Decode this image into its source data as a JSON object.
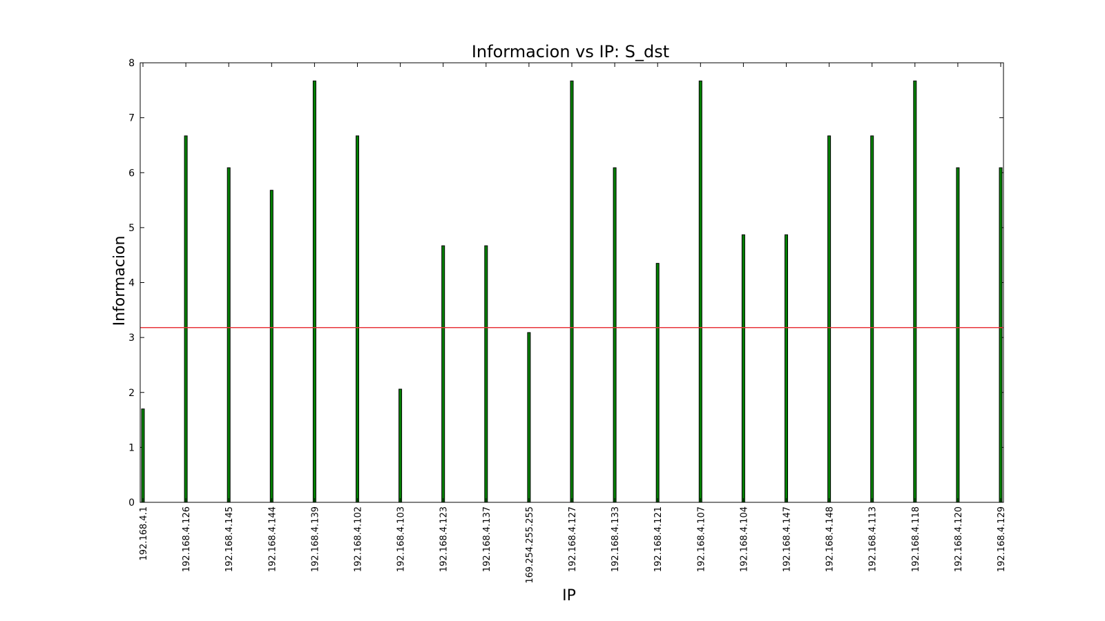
{
  "chart_data": {
    "type": "bar",
    "title": "Informacion vs IP: S_dst",
    "xlabel": "IP",
    "ylabel": "Informacion",
    "ylim": [
      0,
      8
    ],
    "yticks": [
      "0",
      "1",
      "2",
      "3",
      "4",
      "5",
      "6",
      "7",
      "8"
    ],
    "grid": false,
    "categories": [
      "192.168.4.1",
      "192.168.4.126",
      "192.168.4.145",
      "192.168.4.144",
      "192.168.4.139",
      "192.168.4.102",
      "192.168.4.103",
      "192.168.4.123",
      "192.168.4.137",
      "169.254.255.255",
      "192.168.4.127",
      "192.168.4.133",
      "192.168.4.121",
      "192.168.4.107",
      "192.168.4.104",
      "192.168.4.147",
      "192.168.4.148",
      "192.168.4.113",
      "192.168.4.118",
      "192.168.4.120",
      "192.168.4.129"
    ],
    "values": [
      1.7,
      6.67,
      6.09,
      5.68,
      7.67,
      6.67,
      2.06,
      4.67,
      4.67,
      3.09,
      7.67,
      6.09,
      4.35,
      7.67,
      4.87,
      4.87,
      6.67,
      6.67,
      7.67,
      6.09,
      6.09
    ],
    "reference_line": 3.18,
    "colors": {
      "bar_fill": "#008000",
      "bar_edge": "#000000",
      "reference_line": "#e8333a",
      "axes": "#000000"
    }
  }
}
